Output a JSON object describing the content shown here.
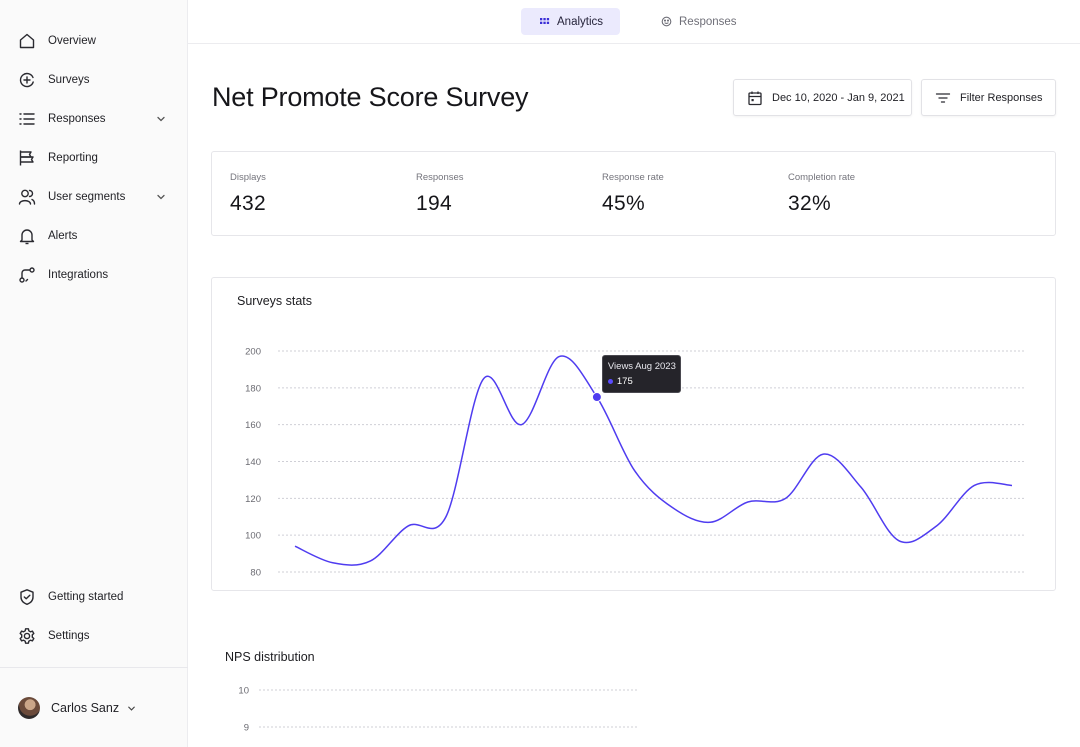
{
  "sidebar": {
    "items": [
      {
        "label": "Overview",
        "icon": "home-icon"
      },
      {
        "label": "Surveys",
        "icon": "add-circle-icon"
      },
      {
        "label": "Responses",
        "icon": "list-icon",
        "expandable": true
      },
      {
        "label": "Reporting",
        "icon": "report-icon"
      },
      {
        "label": "User segments",
        "icon": "users-icon",
        "expandable": true
      },
      {
        "label": "Alerts",
        "icon": "bell-icon"
      },
      {
        "label": "Integrations",
        "icon": "integrations-icon"
      }
    ],
    "bottom_items": [
      {
        "label": "Getting started",
        "icon": "shield-check-icon"
      },
      {
        "label": "Settings",
        "icon": "gear-icon"
      }
    ],
    "user": {
      "name": "Carlos Sanz"
    }
  },
  "tabs": [
    {
      "label": "Analytics",
      "icon": "grid-icon",
      "active": true
    },
    {
      "label": "Responses",
      "icon": "smile-icon",
      "active": false
    }
  ],
  "header": {
    "title": "Net Promote Score Survey",
    "date_range": "Dec 10, 2020 - Jan 9, 2021",
    "filter_label": "Filter Responses"
  },
  "stats": [
    {
      "label": "Displays",
      "value": "432"
    },
    {
      "label": "Responses",
      "value": "194"
    },
    {
      "label": "Response rate",
      "value": "45%"
    },
    {
      "label": "Completion rate",
      "value": "32%"
    }
  ],
  "surveys_chart": {
    "title": "Surveys stats",
    "tooltip": {
      "title": "Views Aug 2023",
      "value": "175"
    }
  },
  "nps": {
    "title": "NPS distribution"
  },
  "colors": {
    "accent": "#4f3cf0",
    "active_tab_bg": "#ebeafd",
    "tooltip_bg": "#25242a"
  },
  "chart_data": [
    {
      "type": "line",
      "title": "Surveys stats",
      "ylim": [
        80,
        200
      ],
      "yticks": [
        200,
        180,
        160,
        140,
        120,
        100,
        80
      ],
      "grid": true,
      "x": [
        0,
        1,
        2,
        3,
        4,
        5,
        6,
        7,
        8,
        9,
        10,
        11,
        12,
        13,
        14,
        15,
        16,
        17,
        18,
        19
      ],
      "series": [
        {
          "values": [
            94,
            85,
            86,
            105,
            110,
            185,
            160,
            197,
            175,
            135,
            115,
            107,
            118,
            120,
            144,
            126,
            97,
            105,
            127,
            127
          ]
        }
      ],
      "highlight": {
        "index": 8,
        "label": "Views Aug 2023",
        "value": 175
      }
    },
    {
      "type": "bar",
      "title": "NPS distribution",
      "yticks": [
        10,
        9
      ],
      "grid": true
    }
  ]
}
